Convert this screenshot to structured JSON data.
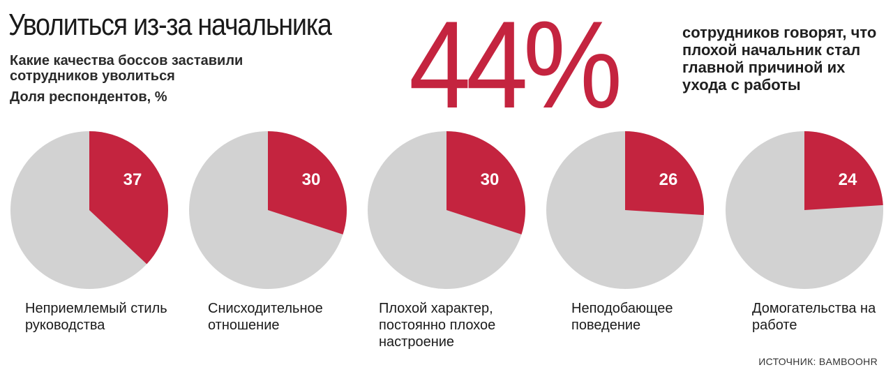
{
  "title": "Уволиться из-за начальника",
  "subtitle": "Какие качества боссов заставили сотрудников уволиться",
  "unit_label": "Доля респондентов, %",
  "headline": {
    "value": "44%",
    "description": "сотрудников говорят, что плохой начальник стал главной причиной их ухода с работы"
  },
  "colors": {
    "accent": "#c4243f",
    "rest": "#d2d2d2",
    "value_text": "#ffffff"
  },
  "chart_data": {
    "type": "pie",
    "title": "Уволиться из-за начальника",
    "unit": "Доля респондентов, %",
    "charts": [
      {
        "label": "Неприемлемый стиль руководства",
        "value": 37,
        "value_label": "37"
      },
      {
        "label": "Снисходительное отношение",
        "value": 30,
        "value_label": "30"
      },
      {
        "label": "Плохой характер, постоянно плохое настроение",
        "value": 30,
        "value_label": "30"
      },
      {
        "label": "Неподобающее поведение",
        "value": 26,
        "value_label": "26"
      },
      {
        "label": "Домогательства на работе",
        "value": 24,
        "value_label": "24"
      }
    ]
  },
  "source": "ИСТОЧНИК: BAMBOOHR"
}
